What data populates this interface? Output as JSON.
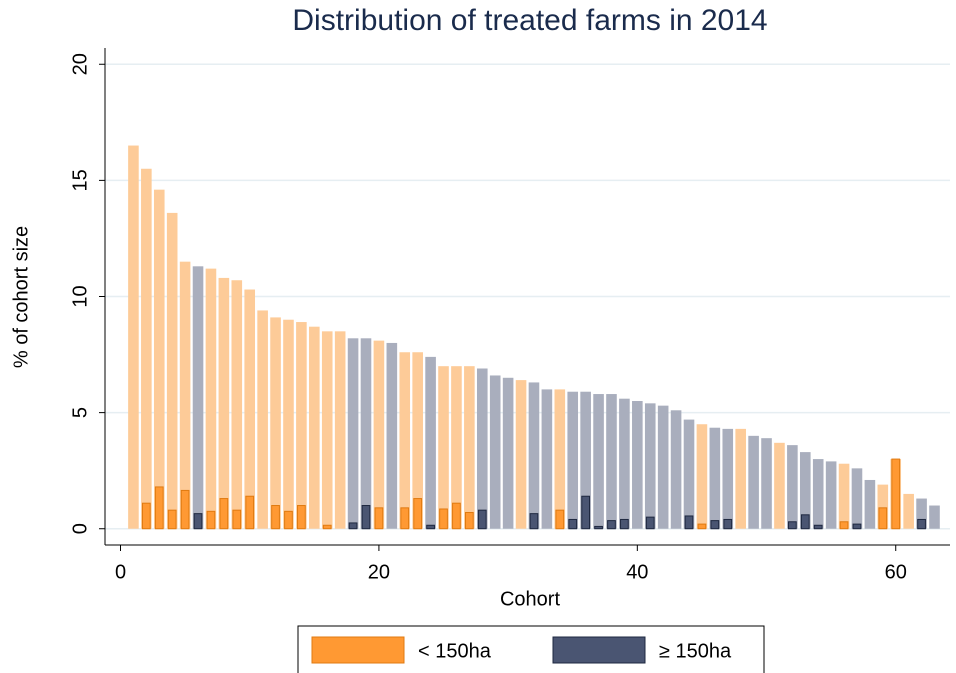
{
  "chart_data": {
    "type": "bar",
    "title": "Distribution of treated farms in 2014",
    "x_label": "Cohort",
    "y_label": "% of cohort size",
    "x": [
      1,
      2,
      3,
      4,
      5,
      6,
      7,
      8,
      9,
      10,
      11,
      12,
      13,
      14,
      15,
      16,
      17,
      18,
      19,
      20,
      21,
      22,
      23,
      24,
      25,
      26,
      27,
      28,
      29,
      30,
      31,
      32,
      33,
      34,
      35,
      36,
      37,
      38,
      39,
      40,
      41,
      42,
      43,
      44,
      45,
      46,
      47,
      48,
      49,
      50,
      51,
      52,
      53,
      54,
      55,
      56,
      57,
      58,
      59,
      60,
      61,
      62,
      63
    ],
    "xlim": [
      -1.2,
      64.2
    ],
    "xticks": [
      0,
      20,
      40,
      60
    ],
    "ylim": [
      -0.7,
      20.7
    ],
    "yticks": [
      0,
      5,
      10,
      15,
      20
    ],
    "grid": true,
    "series": [
      {
        "name": "< 150ha",
        "color": "#ff9933",
        "light_color": "#fdcb98",
        "totals": [
          16.5,
          15.5,
          14.6,
          13.6,
          11.5,
          null,
          11.2,
          10.8,
          10.7,
          10.3,
          9.4,
          9.1,
          9.0,
          8.9,
          8.7,
          8.5,
          8.5,
          null,
          null,
          8.1,
          null,
          7.6,
          7.6,
          null,
          7.0,
          7.0,
          7.0,
          null,
          null,
          null,
          6.4,
          null,
          null,
          6.0,
          null,
          null,
          null,
          null,
          null,
          null,
          null,
          null,
          null,
          null,
          4.5,
          null,
          null,
          4.3,
          null,
          null,
          3.7,
          null,
          null,
          null,
          null,
          2.8,
          null,
          null,
          1.9,
          3.0,
          1.5,
          null,
          null
        ],
        "treated": [
          null,
          1.1,
          1.8,
          0.8,
          1.65,
          null,
          0.75,
          1.3,
          0.8,
          1.4,
          null,
          1.0,
          0.75,
          1.0,
          null,
          0.15,
          null,
          null,
          null,
          0.9,
          null,
          0.9,
          1.3,
          null,
          0.85,
          1.1,
          0.7,
          null,
          null,
          null,
          null,
          null,
          null,
          0.8,
          null,
          null,
          null,
          null,
          null,
          null,
          null,
          null,
          null,
          null,
          0.2,
          null,
          null,
          null,
          null,
          null,
          null,
          null,
          null,
          null,
          null,
          0.3,
          null,
          null,
          0.9,
          3.0,
          null,
          null,
          null
        ]
      },
      {
        "name": "≥ 150ha",
        "color": "#4a5572",
        "light_color": "#a9aebd",
        "totals": [
          null,
          null,
          null,
          null,
          null,
          11.3,
          null,
          null,
          null,
          null,
          null,
          null,
          null,
          null,
          null,
          null,
          null,
          8.2,
          8.2,
          null,
          8.0,
          null,
          null,
          7.4,
          null,
          null,
          null,
          6.9,
          6.6,
          6.5,
          null,
          6.3,
          6.0,
          null,
          5.9,
          5.9,
          5.8,
          5.8,
          5.6,
          5.5,
          5.4,
          5.3,
          5.1,
          4.7,
          null,
          4.35,
          4.3,
          null,
          4.0,
          3.9,
          null,
          3.6,
          3.3,
          3.0,
          2.9,
          null,
          2.6,
          2.1,
          null,
          null,
          null,
          1.3,
          1.0
        ],
        "treated": [
          null,
          null,
          null,
          null,
          null,
          0.65,
          null,
          null,
          null,
          null,
          null,
          null,
          null,
          null,
          null,
          null,
          null,
          0.25,
          1.0,
          null,
          null,
          null,
          null,
          0.15,
          null,
          null,
          null,
          0.8,
          null,
          null,
          null,
          0.65,
          null,
          null,
          0.4,
          1.4,
          0.1,
          0.35,
          0.4,
          null,
          0.5,
          null,
          null,
          0.55,
          null,
          0.35,
          0.4,
          null,
          null,
          null,
          null,
          0.3,
          0.6,
          0.15,
          null,
          null,
          0.2,
          null,
          null,
          null,
          null,
          0.4,
          null
        ]
      }
    ]
  }
}
